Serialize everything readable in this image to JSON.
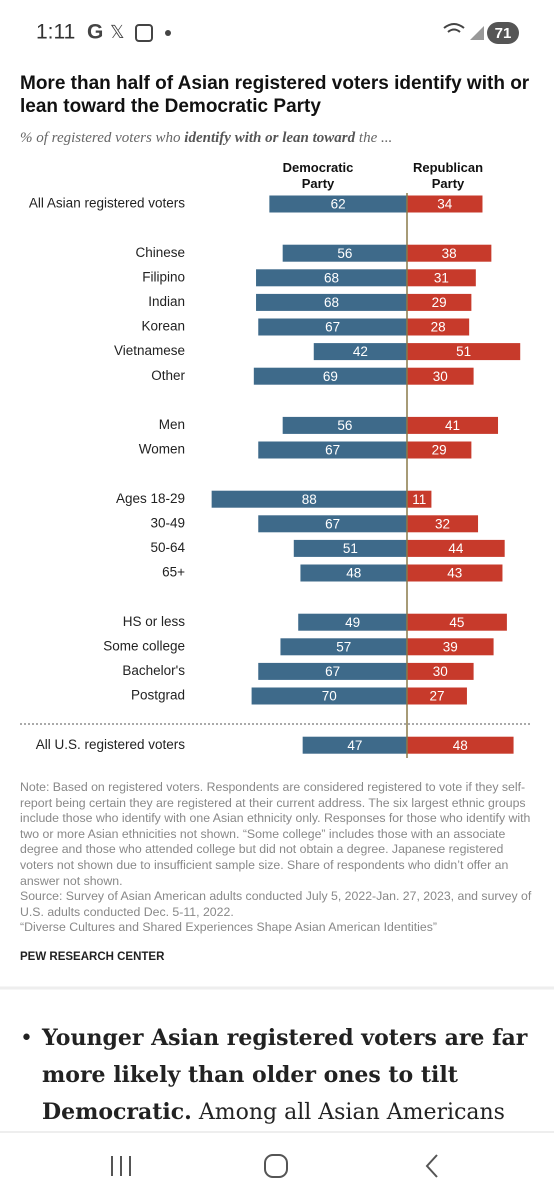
{
  "status_bar": {
    "time": "1:11",
    "apps": [
      "G",
      "𝕏"
    ],
    "battery": "71"
  },
  "chart_data": {
    "type": "diverging-bar",
    "title": "More than half of Asian registered voters identify with or lean toward the Democratic Party",
    "subtitle": [
      "% of registered voters who ",
      "identify with or lean toward",
      " the ..."
    ],
    "categories": [
      "All Asian registered voters",
      "Chinese",
      "Filipino",
      "Indian",
      "Korean",
      "Vietnamese",
      "Other",
      "Men",
      "Women",
      "Ages 18-29",
      "30-49",
      "50-64",
      "65+",
      "HS or less",
      "Some college",
      "Bachelor's",
      "Postgrad",
      "All U.S. registered voters"
    ],
    "series": [
      {
        "name": "Democratic Party",
        "color": "#3e6a8a",
        "values": [
          62,
          56,
          68,
          68,
          67,
          42,
          69,
          56,
          67,
          88,
          67,
          51,
          48,
          49,
          57,
          67,
          70,
          47
        ]
      },
      {
        "name": "Republican Party",
        "color": "#c73a2b",
        "values": [
          34,
          38,
          31,
          29,
          28,
          51,
          30,
          41,
          29,
          11,
          32,
          44,
          43,
          45,
          39,
          30,
          27,
          48
        ]
      }
    ],
    "note": "Note: Based on registered voters. Respondents are considered registered to vote if they self-report being certain they are registered at their current address. The six largest ethnic groups include those who identify with one Asian ethnicity only. Responses for those who identify with two or more Asian ethnicities not shown. “Some college” includes those with an associate degree and those who attended college but did not obtain a degree. Japanese registered voters not shown due to insufficient sample size. Share of respondents who didn’t offer an answer not shown.",
    "source": "Source: Survey of Asian American adults conducted July 5, 2022-Jan. 27, 2023, and survey of U.S. adults conducted Dec. 5-11, 2022.",
    "report": "“Diverse Cultures and Shared Experiences Shape Asian American Identities”",
    "credit": "PEW RESEARCH CENTER"
  },
  "article": {
    "bold": "Younger Asian registered voters are far more likely than older ones to tilt Democratic.",
    "text": " Among all Asian Americans"
  }
}
